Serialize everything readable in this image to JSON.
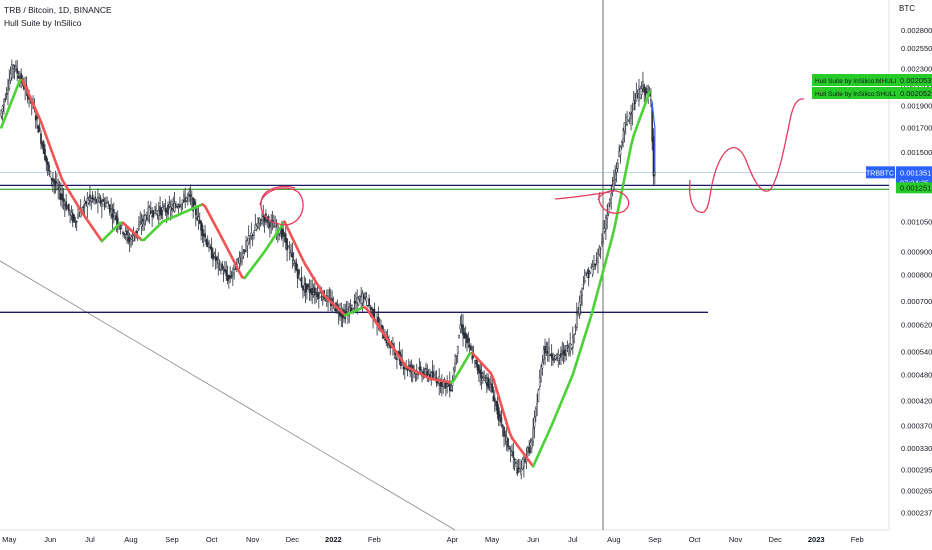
{
  "header": {
    "symbol_title": "TRB / Bitcoin, 1D, BINANCE",
    "indicator_name": "Hull Suite by InSilico",
    "unit": "BTC"
  },
  "colors": {
    "hull_up": "#4cd137",
    "hull_down": "#f05454",
    "price": "#2962ff",
    "candle": "#2a2e39",
    "support": "#1a1a66",
    "resistance_green": "#2e9c2a",
    "price_line": "#9fb0e6",
    "drawing": "#e33b5e",
    "tag_blue": "#2962ff",
    "tag_green": "#28cc28",
    "trendline": "#888888"
  },
  "chart_data": {
    "type": "line",
    "title": "TRB / Bitcoin, 1D, BINANCE",
    "y_scale": "log",
    "ylim": [
      0.00022,
      0.0031
    ],
    "y_ticks": [
      "0.002800",
      "0.002550",
      "0.002300",
      "0.002100",
      "0.001900",
      "0.001700",
      "0.001500",
      "0.001351",
      "0.001251",
      "0.001050",
      "0.000900",
      "0.000800",
      "0.000700",
      "0.000620",
      "0.000540",
      "0.000480",
      "0.000420",
      "0.000370",
      "0.000330",
      "0.000295",
      "0.000265",
      "0.000237"
    ],
    "x_ticks": [
      "May",
      "Jun",
      "Jul",
      "Aug",
      "Sep",
      "Oct",
      "Nov",
      "Dec",
      "2022",
      "Feb",
      "Apr",
      "May",
      "Jun",
      "Jul",
      "Aug",
      "Sep",
      "Oct",
      "Nov",
      "Dec",
      "2023",
      "Feb"
    ],
    "series": [
      {
        "name": "TRBBTC",
        "x": [
          "2021-04-25",
          "2021-05-05",
          "2021-05-20",
          "2021-06-01",
          "2021-06-10",
          "2021-06-20",
          "2021-07-01",
          "2021-07-15",
          "2021-08-01",
          "2021-08-15",
          "2021-09-01",
          "2021-09-15",
          "2021-10-01",
          "2021-10-15",
          "2021-11-01",
          "2021-11-10",
          "2021-11-25",
          "2021-12-10",
          "2021-12-25",
          "2022-01-10",
          "2022-01-25",
          "2022-02-10",
          "2022-02-25",
          "2022-03-15",
          "2022-04-01",
          "2022-04-08",
          "2022-04-20",
          "2022-05-01",
          "2022-05-10",
          "2022-05-22",
          "2022-06-01",
          "2022-06-10",
          "2022-06-20",
          "2022-07-01",
          "2022-07-10",
          "2022-07-20",
          "2022-08-01",
          "2022-08-10",
          "2022-08-18",
          "2022-08-24",
          "2022-08-30",
          "2022-09-01"
        ],
        "values": [
          0.0018,
          0.00235,
          0.0019,
          0.00135,
          0.0012,
          0.00105,
          0.00118,
          0.00115,
          0.00095,
          0.0011,
          0.00112,
          0.0012,
          0.0009,
          0.00078,
          0.00098,
          0.00108,
          0.00098,
          0.00075,
          0.00072,
          0.00065,
          0.00072,
          0.00058,
          0.0005,
          0.00048,
          0.00045,
          0.00062,
          0.0005,
          0.00045,
          0.00036,
          0.00029,
          0.00034,
          0.00055,
          0.00052,
          0.00056,
          0.00078,
          0.00085,
          0.00125,
          0.0017,
          0.00195,
          0.0021,
          0.00195,
          0.001351
        ]
      },
      {
        "name": "Hull Suite by InSilico",
        "x": [
          "2021-04-25",
          "2021-05-10",
          "2021-05-25",
          "2021-06-10",
          "2021-06-25",
          "2021-07-10",
          "2021-07-25",
          "2021-08-10",
          "2021-08-25",
          "2021-09-10",
          "2021-09-25",
          "2021-10-10",
          "2021-10-25",
          "2021-11-10",
          "2021-11-25",
          "2021-12-10",
          "2021-12-25",
          "2022-01-10",
          "2022-01-25",
          "2022-02-10",
          "2022-02-25",
          "2022-03-15",
          "2022-04-01",
          "2022-04-15",
          "2022-05-01",
          "2022-05-15",
          "2022-06-01",
          "2022-06-15",
          "2022-07-01",
          "2022-07-15",
          "2022-08-01",
          "2022-08-15",
          "2022-08-28"
        ],
        "values": [
          0.0017,
          0.0022,
          0.00175,
          0.0013,
          0.0011,
          0.00095,
          0.00105,
          0.00095,
          0.00105,
          0.0011,
          0.00115,
          0.00095,
          0.00078,
          0.0009,
          0.00105,
          0.00085,
          0.00072,
          0.00065,
          0.00068,
          0.00058,
          0.0005,
          0.00047,
          0.00046,
          0.00054,
          0.00048,
          0.00035,
          0.0003,
          0.00037,
          0.00048,
          0.00065,
          0.001,
          0.0016,
          0.00204
        ]
      }
    ],
    "legend_entries": [
      {
        "label": "Hull Suite by InSilico:MHULL",
        "value": "0.002053"
      },
      {
        "label": "Hull Suite by InSilico:SHULL",
        "value": "0.002052"
      }
    ],
    "price_tag": {
      "symbol": "TRBBTC",
      "value": "0.001351",
      "countdown": "07:34:25"
    },
    "level_tag": {
      "value": "0.001251"
    },
    "horizontal_lines": [
      0.001251,
      0.00066
    ],
    "grid": false
  }
}
